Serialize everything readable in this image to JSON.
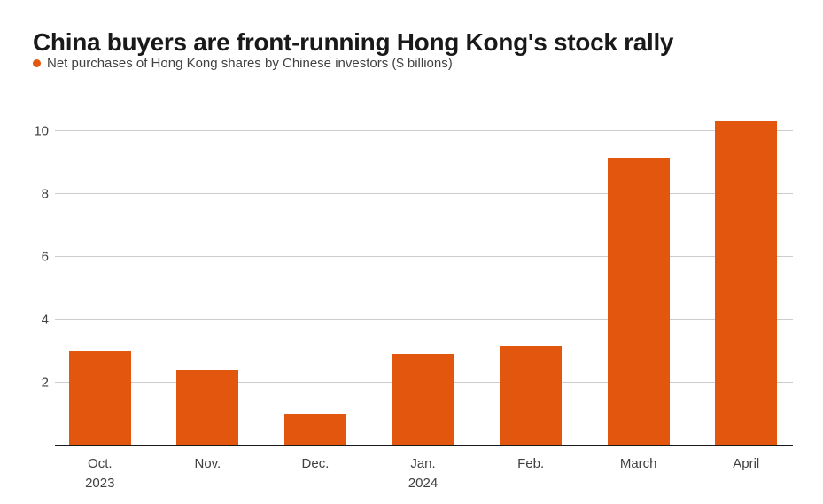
{
  "title": "China buyers are front-running Hong Kong's stock rally",
  "legend": {
    "label": "Net purchases of Hong Kong shares by Chinese investors ($ billions)"
  },
  "chart_data": {
    "type": "bar",
    "title": "China buyers are front-running Hong Kong's stock rally",
    "series_label": "Net purchases of Hong Kong shares by Chinese investors ($ billions)",
    "categories": [
      "Oct.",
      "Nov.",
      "Dec.",
      "Jan.",
      "Feb.",
      "March",
      "April"
    ],
    "category_sublabels": [
      "2023",
      "",
      "",
      "2024",
      "",
      "",
      ""
    ],
    "values": [
      3.0,
      2.4,
      1.0,
      2.9,
      3.15,
      9.15,
      10.3
    ],
    "xlabel": "",
    "ylabel": "",
    "yticks": [
      2,
      4,
      6,
      8,
      10
    ],
    "ylim": [
      0,
      10.5
    ],
    "grid": true,
    "legend_position": "top-left",
    "colors": {
      "bar": "#e2570d",
      "grid": "#cccccc",
      "baseline": "#1a1a1a",
      "text": "#404040",
      "title": "#191919"
    }
  }
}
